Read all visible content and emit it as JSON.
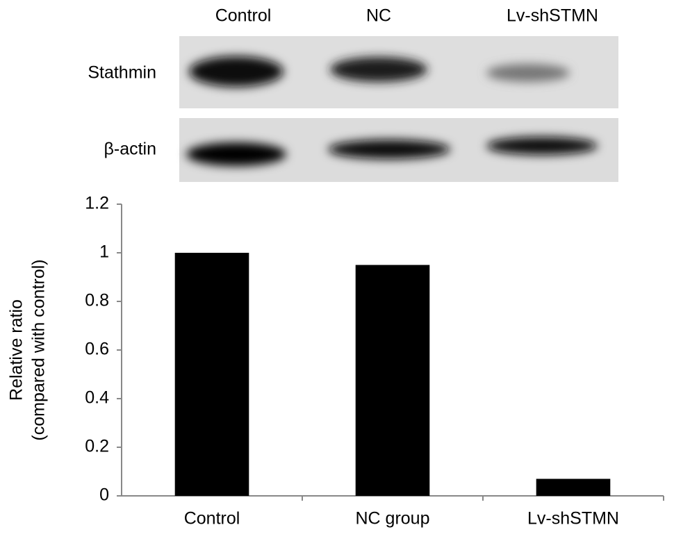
{
  "blot": {
    "lanes": [
      "Control",
      "NC",
      "Lv-shSTMN"
    ],
    "rows": [
      "Stathmin",
      "β-actin"
    ]
  },
  "chart_data": {
    "type": "bar",
    "ylabel": [
      "Relative ratio",
      "(compared with control)"
    ],
    "categories": [
      "Control",
      "NC group",
      "Lv-shSTMN"
    ],
    "values": [
      1.0,
      0.95,
      0.07
    ],
    "color": "#000000",
    "ylim": [
      0,
      1.2
    ],
    "yticks": [
      0,
      0.2,
      0.4,
      0.6,
      0.8,
      1,
      1.2
    ],
    "grid": false
  }
}
